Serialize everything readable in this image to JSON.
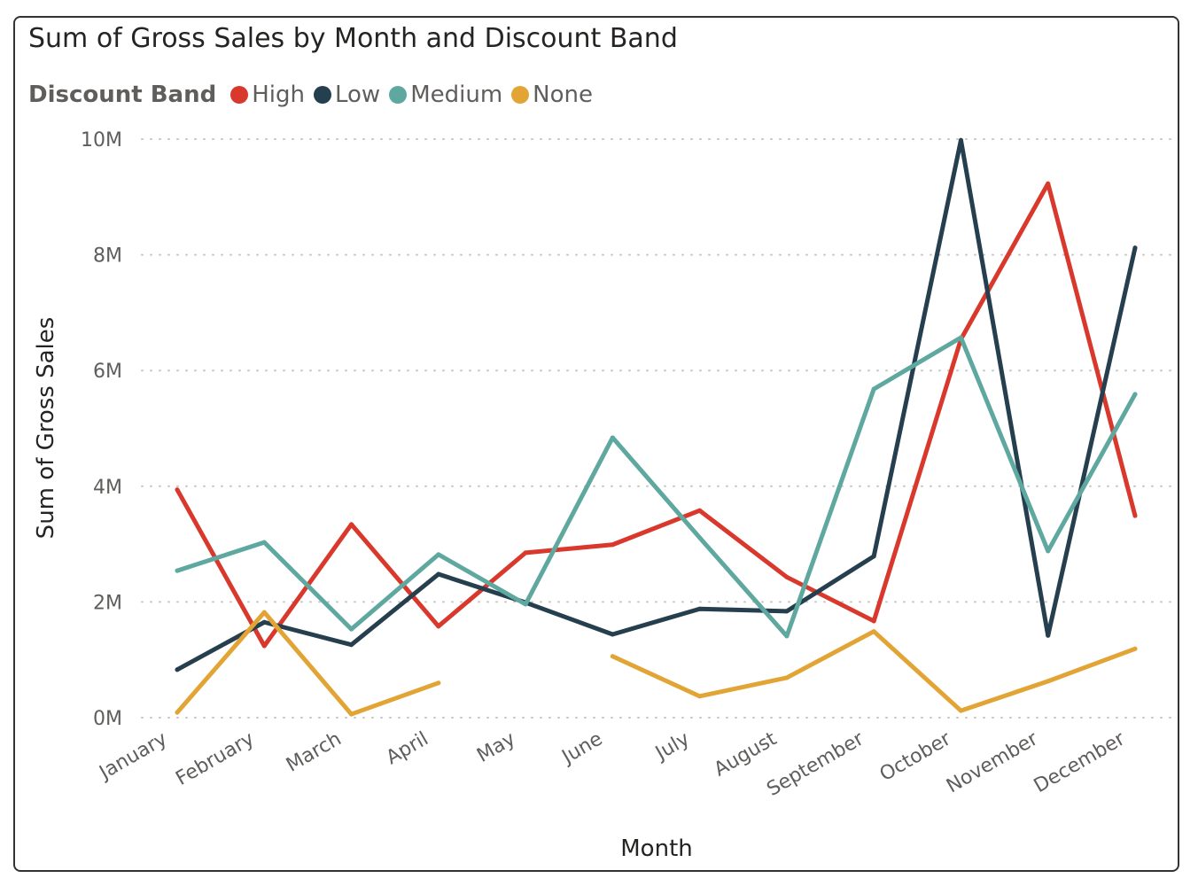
{
  "chart_data": {
    "type": "line",
    "title": "Sum of Gross Sales by Month and Discount Band",
    "xlabel": "Month",
    "ylabel": "Sum of Gross Sales",
    "legend_title": "Discount Band",
    "legend_position": "top-left",
    "grid": true,
    "ylim": [
      0,
      10000000
    ],
    "yticks": [
      {
        "value": 0,
        "label": "0M"
      },
      {
        "value": 2000000,
        "label": "2M"
      },
      {
        "value": 4000000,
        "label": "4M"
      },
      {
        "value": 6000000,
        "label": "6M"
      },
      {
        "value": 8000000,
        "label": "8M"
      },
      {
        "value": 10000000,
        "label": "10M"
      }
    ],
    "categories": [
      "January",
      "February",
      "March",
      "April",
      "May",
      "June",
      "July",
      "August",
      "September",
      "October",
      "November",
      "December"
    ],
    "series": [
      {
        "name": "High",
        "color": "#d9392c",
        "values": [
          3940000,
          1240000,
          3340000,
          1580000,
          2850000,
          2990000,
          3580000,
          2430000,
          1670000,
          6540000,
          9230000,
          3490000
        ]
      },
      {
        "name": "Low",
        "color": "#253f4f",
        "values": [
          830000,
          1650000,
          1260000,
          2480000,
          1990000,
          1440000,
          1880000,
          1840000,
          2790000,
          9980000,
          1420000,
          8120000
        ]
      },
      {
        "name": "Medium",
        "color": "#5fa8a0",
        "values": [
          2540000,
          3030000,
          1530000,
          2820000,
          1960000,
          4840000,
          3110000,
          1410000,
          5680000,
          6570000,
          2880000,
          5590000
        ]
      },
      {
        "name": "None",
        "color": "#e2a535",
        "values": [
          90000,
          1820000,
          60000,
          600000,
          null,
          1060000,
          370000,
          690000,
          1490000,
          120000,
          630000,
          1190000
        ]
      }
    ]
  }
}
